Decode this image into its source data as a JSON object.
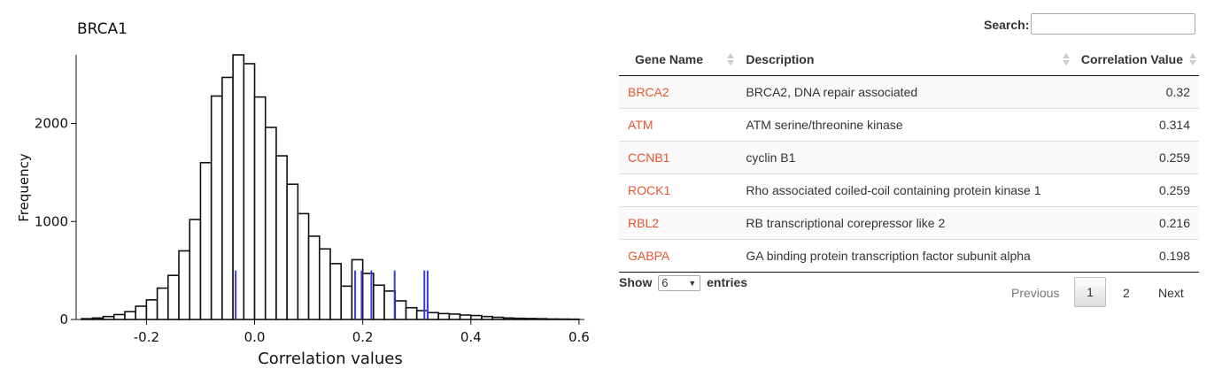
{
  "chart_data": {
    "type": "histogram",
    "title": "BRCA1",
    "xlabel": "Correlation values",
    "ylabel": "Frequency",
    "xlim": [
      -0.33,
      0.61
    ],
    "ylim": [
      0,
      2700
    ],
    "xticks": [
      -0.2,
      0.0,
      0.2,
      0.4,
      0.6
    ],
    "xtick_labels": [
      "-0.2",
      "0.0",
      "0.2",
      "0.4",
      "0.6"
    ],
    "yticks": [
      0,
      1000,
      2000
    ],
    "ytick_labels": [
      "0",
      "1000",
      "2000"
    ],
    "bin_start": -0.32,
    "bin_width": 0.02,
    "values": [
      8,
      15,
      30,
      50,
      80,
      135,
      200,
      320,
      450,
      700,
      1020,
      1600,
      2280,
      2470,
      2710,
      2610,
      2270,
      1960,
      1670,
      1380,
      1080,
      850,
      720,
      570,
      340,
      610,
      470,
      350,
      290,
      190,
      120,
      90,
      70,
      60,
      55,
      45,
      40,
      30,
      22,
      15,
      12,
      10,
      8,
      5,
      4,
      3
    ],
    "highlight_lines": {
      "color": "#3b3bdb",
      "x": [
        0.32,
        0.314,
        0.259,
        0.216,
        0.198,
        0.186,
        -0.035
      ],
      "height": 500
    },
    "grid": false
  },
  "search": {
    "label": "Search:",
    "value": "",
    "placeholder": ""
  },
  "table": {
    "columns": [
      "Gene Name",
      "Description",
      "Correlation Value"
    ],
    "rows": [
      {
        "gene": "BRCA2",
        "description": "BRCA2, DNA repair associated",
        "corr": "0.32"
      },
      {
        "gene": "ATM",
        "description": "ATM serine/threonine kinase",
        "corr": "0.314"
      },
      {
        "gene": "CCNB1",
        "description": "cyclin B1",
        "corr": "0.259"
      },
      {
        "gene": "ROCK1",
        "description": "Rho associated coiled-coil containing protein kinase 1",
        "corr": "0.259"
      },
      {
        "gene": "RBL2",
        "description": "RB transcriptional corepressor like 2",
        "corr": "0.216"
      },
      {
        "gene": "GABPA",
        "description": "GA binding protein transcription factor subunit alpha",
        "corr": "0.198"
      }
    ],
    "link_color": "#e8552f"
  },
  "length": {
    "show": "Show",
    "value": "6",
    "entries": "entries"
  },
  "pagination": {
    "previous": "Previous",
    "pages": [
      "1",
      "2"
    ],
    "current": "1",
    "next": "Next"
  }
}
